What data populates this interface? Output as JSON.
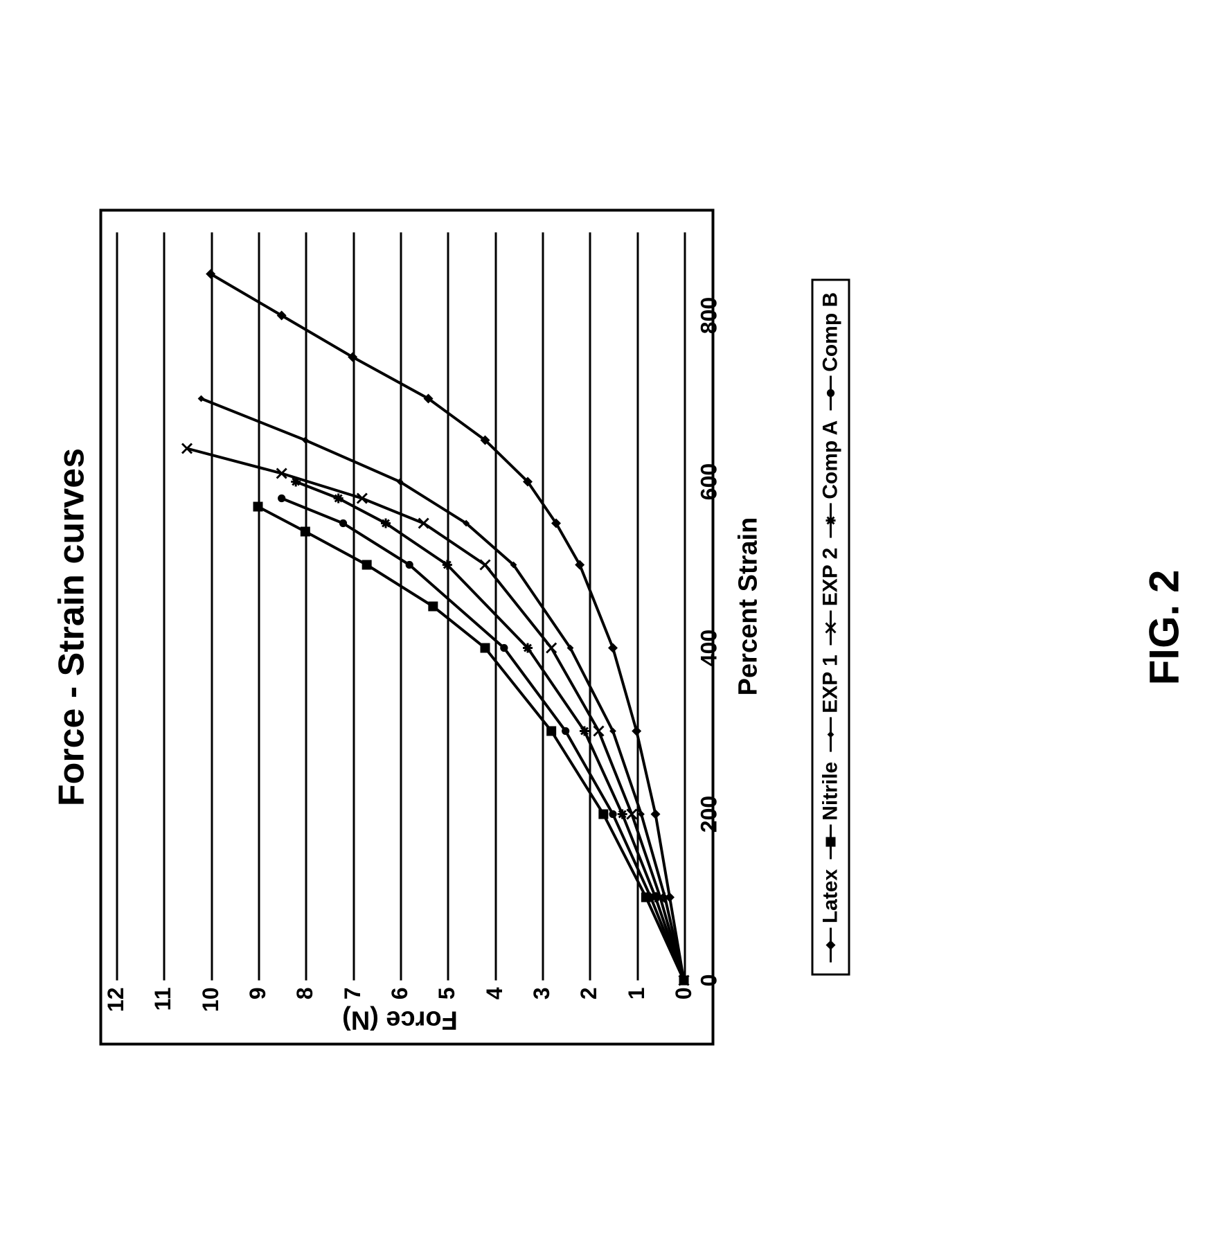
{
  "figure_label": "FIG. 2",
  "chart": {
    "type": "line",
    "title": "Force - Strain curves",
    "title_fontsize": 52,
    "xlabel": "Percent Strain",
    "ylabel": "Force (N)",
    "label_fontsize": 38,
    "tick_fontsize": 32,
    "xlim": [
      0,
      900
    ],
    "ylim": [
      0,
      12
    ],
    "xtick_step": 200,
    "xticks": [
      0,
      200,
      400,
      600,
      800
    ],
    "yticks": [
      0,
      1,
      2,
      3,
      4,
      5,
      6,
      7,
      8,
      9,
      10,
      11,
      12
    ],
    "grid_color": "#000000",
    "grid_linewidth": 3,
    "background_color": "#ffffff",
    "border_color": "#000000",
    "line_color": "#000000",
    "line_width": 4,
    "series": [
      {
        "name": "Latex",
        "marker": "diamond",
        "x": [
          0,
          100,
          200,
          300,
          400,
          500,
          550,
          600,
          650,
          700,
          750,
          800,
          850
        ],
        "y": [
          0,
          0.3,
          0.6,
          1.0,
          1.5,
          2.2,
          2.7,
          3.3,
          4.2,
          5.4,
          7.0,
          8.5,
          10.0
        ]
      },
      {
        "name": "Nitrile",
        "marker": "square",
        "x": [
          0,
          100,
          200,
          300,
          400,
          450,
          500,
          540,
          570
        ],
        "y": [
          0,
          0.8,
          1.7,
          2.8,
          4.2,
          5.3,
          6.7,
          8.0,
          9.0
        ]
      },
      {
        "name": "EXP 1",
        "marker": "diamond-small",
        "x": [
          0,
          100,
          200,
          300,
          400,
          500,
          550,
          600,
          650,
          700
        ],
        "y": [
          0,
          0.4,
          0.9,
          1.5,
          2.4,
          3.6,
          4.6,
          6.0,
          8.0,
          10.2
        ]
      },
      {
        "name": "EXP 2",
        "marker": "x",
        "x": [
          0,
          100,
          200,
          300,
          400,
          500,
          550,
          580,
          610,
          640
        ],
        "y": [
          0,
          0.5,
          1.1,
          1.8,
          2.8,
          4.2,
          5.5,
          6.8,
          8.5,
          10.5
        ]
      },
      {
        "name": "Comp A",
        "marker": "asterisk",
        "x": [
          0,
          100,
          200,
          300,
          400,
          500,
          550,
          580,
          600
        ],
        "y": [
          0,
          0.6,
          1.3,
          2.1,
          3.3,
          5.0,
          6.3,
          7.3,
          8.2
        ]
      },
      {
        "name": "Comp B",
        "marker": "circle",
        "x": [
          0,
          100,
          200,
          300,
          400,
          500,
          550,
          580
        ],
        "y": [
          0,
          0.7,
          1.5,
          2.5,
          3.8,
          5.8,
          7.2,
          8.5
        ]
      }
    ],
    "legend": {
      "items": [
        "Latex",
        "Nitrile",
        "EXP 1",
        "EXP 2",
        "Comp A",
        "Comp B"
      ],
      "markers": [
        "diamond",
        "square",
        "diamond-small",
        "x",
        "asterisk",
        "circle"
      ],
      "border_color": "#000000",
      "fontsize": 30
    }
  }
}
